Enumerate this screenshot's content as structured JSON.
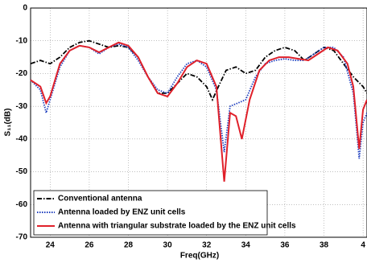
{
  "chart_data": {
    "type": "line",
    "xlabel": "Freq(GHz)",
    "ylabel": "S₁₁(dB)",
    "xlim": [
      23,
      40.2
    ],
    "ylim": [
      -70,
      0
    ],
    "xticks": [
      24,
      26,
      28,
      30,
      32,
      34,
      36,
      38,
      {
        "value": 40,
        "label": "4"
      }
    ],
    "yticks": [
      -70,
      -60,
      -50,
      -40,
      -30,
      -20,
      -10,
      0
    ],
    "grid": true,
    "legend": "lower-left",
    "series": [
      {
        "name": "Conventional antenna",
        "color": "#000000",
        "dash": "dashdot",
        "x": [
          23,
          23.5,
          24,
          24.5,
          25,
          25.5,
          26,
          26.5,
          27,
          27.5,
          28,
          28.5,
          29,
          29.5,
          30,
          30.5,
          31,
          31.5,
          32,
          32.3,
          32.6,
          33,
          33.5,
          34,
          34.5,
          35,
          35.5,
          36,
          36.5,
          37,
          37.5,
          38,
          38.5,
          39,
          39.5,
          40,
          40.2
        ],
        "values": [
          -17,
          -16,
          -17,
          -15,
          -12,
          -10.5,
          -10,
          -11,
          -12,
          -11.5,
          -12,
          -15,
          -21,
          -26,
          -26,
          -23,
          -20,
          -21,
          -24,
          -28,
          -24,
          -19,
          -18,
          -20,
          -19,
          -15,
          -13,
          -12,
          -13,
          -16,
          -14,
          -12,
          -13,
          -17,
          -21,
          -24,
          -26
        ]
      },
      {
        "name": "Antenna loaded by ENZ unit cells",
        "color": "#1f3fbf",
        "dash": "dotted",
        "x": [
          23,
          23.5,
          23.8,
          24,
          24.5,
          25,
          25.5,
          26,
          26.5,
          27,
          27.5,
          28,
          28.5,
          29,
          29.5,
          30,
          30.5,
          31,
          31.5,
          32,
          32.5,
          32.9,
          33.2,
          33.6,
          34,
          34.5,
          35,
          35.5,
          36,
          36.5,
          37,
          37.5,
          38,
          38.5,
          39,
          39.5,
          39.8,
          40,
          40.2
        ],
        "values": [
          -22,
          -25,
          -32,
          -28,
          -18,
          -13,
          -11.5,
          -12,
          -14,
          -12,
          -11,
          -12,
          -16,
          -21,
          -25,
          -26,
          -21,
          -17,
          -16,
          -18,
          -25,
          -44,
          -30,
          -29,
          -28,
          -21,
          -17,
          -16,
          -15.5,
          -16,
          -16,
          -14,
          -12,
          -12,
          -15,
          -26,
          -46,
          -35,
          -32
        ]
      },
      {
        "name": "Antenna with triangular substrate loaded by the ENZ unit cells",
        "color": "#e0202a",
        "dash": "solid",
        "x": [
          23,
          23.5,
          23.8,
          24,
          24.5,
          25,
          25.5,
          26,
          26.5,
          27,
          27.5,
          28,
          28.5,
          29,
          29.5,
          30,
          30.5,
          31,
          31.5,
          32,
          32.5,
          32.9,
          33.2,
          33.5,
          33.8,
          34.2,
          34.7,
          35.2,
          35.7,
          36.2,
          36.7,
          37.2,
          37.7,
          38.2,
          38.7,
          39.2,
          39.5,
          39.8,
          40,
          40.2
        ],
        "values": [
          -22,
          -24,
          -29,
          -27,
          -17,
          -13,
          -11.5,
          -12,
          -13.5,
          -12,
          -10.5,
          -11.5,
          -15,
          -21,
          -26,
          -27,
          -23,
          -18,
          -16,
          -17,
          -24,
          -53,
          -32,
          -33,
          -40,
          -28,
          -19,
          -16,
          -15,
          -15,
          -15.5,
          -16,
          -14,
          -12,
          -13,
          -17,
          -24,
          -43,
          -31,
          -28
        ]
      }
    ]
  }
}
